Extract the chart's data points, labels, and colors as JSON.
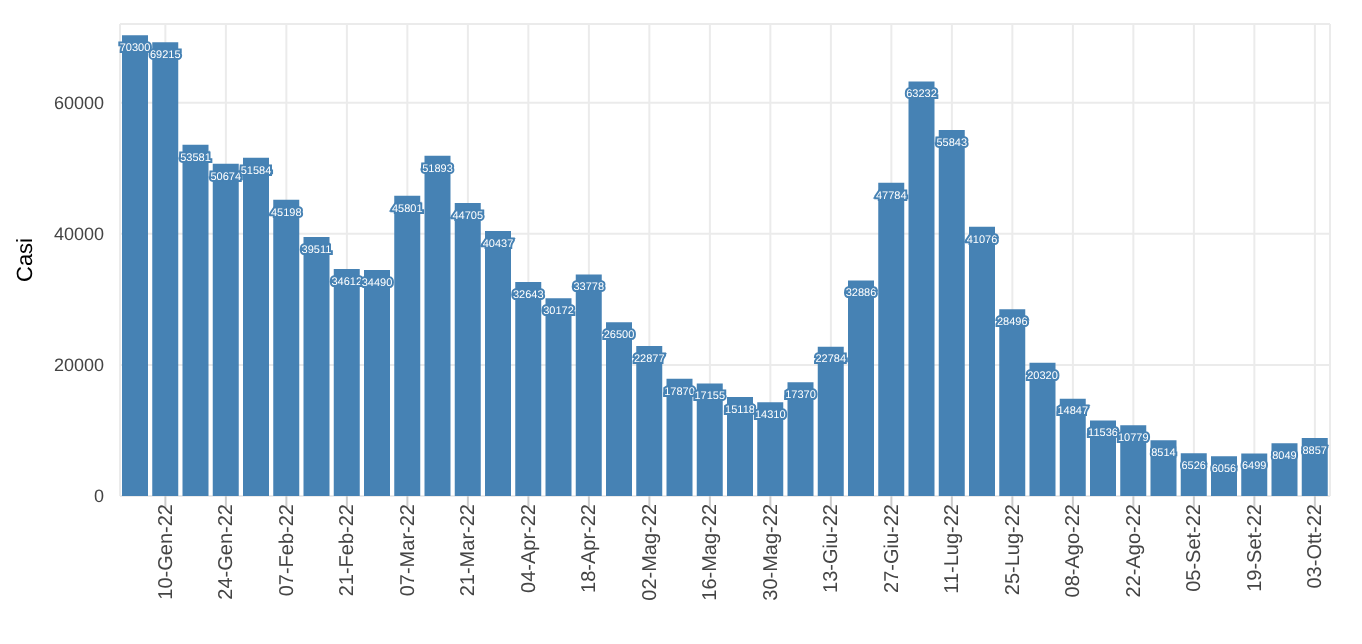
{
  "chart_data": {
    "type": "bar",
    "ylabel": "Casi",
    "categories": [
      null,
      "10-Gen-22",
      null,
      "24-Gen-22",
      null,
      "07-Feb-22",
      null,
      "21-Feb-22",
      null,
      "07-Mar-22",
      null,
      "21-Mar-22",
      null,
      "04-Apr-22",
      null,
      "18-Apr-22",
      null,
      "02-Mag-22",
      null,
      "16-Mag-22",
      null,
      "30-Mag-22",
      null,
      "13-Giu-22",
      null,
      "27-Giu-22",
      null,
      "11-Lug-22",
      null,
      "25-Lug-22",
      null,
      "08-Ago-22",
      null,
      "22-Ago-22",
      null,
      "05-Set-22",
      null,
      "19-Set-22",
      null,
      "03-Ott-22"
    ],
    "values": [
      70300,
      69215,
      53581,
      50674,
      51584,
      45198,
      39511,
      34612,
      34490,
      45801,
      51893,
      44705,
      40437,
      32643,
      30172,
      33778,
      26500,
      22877,
      17870,
      17155,
      15118,
      14310,
      17370,
      22784,
      32886,
      47784,
      63232,
      55843,
      41076,
      28496,
      20320,
      14847,
      11536,
      10779,
      8514,
      6526,
      6056,
      6499,
      8049,
      8857
    ],
    "color": "#4682b4",
    "data_labels": true,
    "ylim": [
      0,
      72000
    ],
    "yticks": [
      0,
      20000,
      40000,
      60000
    ],
    "grid": true
  }
}
